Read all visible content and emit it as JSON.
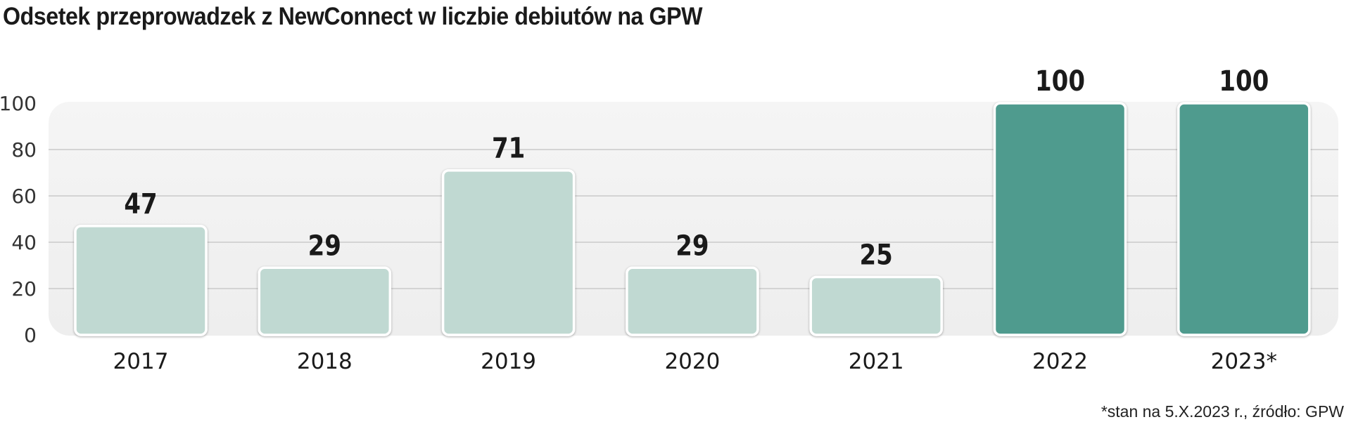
{
  "chart_data": {
    "type": "bar",
    "title": "Odsetek przeprowadzek z NewConnect w liczbie debiutów na GPW",
    "categories": [
      "2017",
      "2018",
      "2019",
      "2020",
      "2021",
      "2022",
      "2023*"
    ],
    "values": [
      47,
      29,
      71,
      29,
      25,
      100,
      100
    ],
    "highlighted": [
      false,
      false,
      false,
      false,
      false,
      true,
      true
    ],
    "ylim": [
      0,
      100
    ],
    "yticks": [
      0,
      20,
      40,
      60,
      80,
      100
    ],
    "grid": true,
    "xlabel": "",
    "ylabel": "",
    "footnote": "*stan na 5.X.2023 r., źródło: GPW",
    "colors": {
      "bar": "#c0d9d2",
      "bar_highlight": "#4f9b8e",
      "panel": "#f2f2f2",
      "grid": "#d4d4d4"
    }
  }
}
